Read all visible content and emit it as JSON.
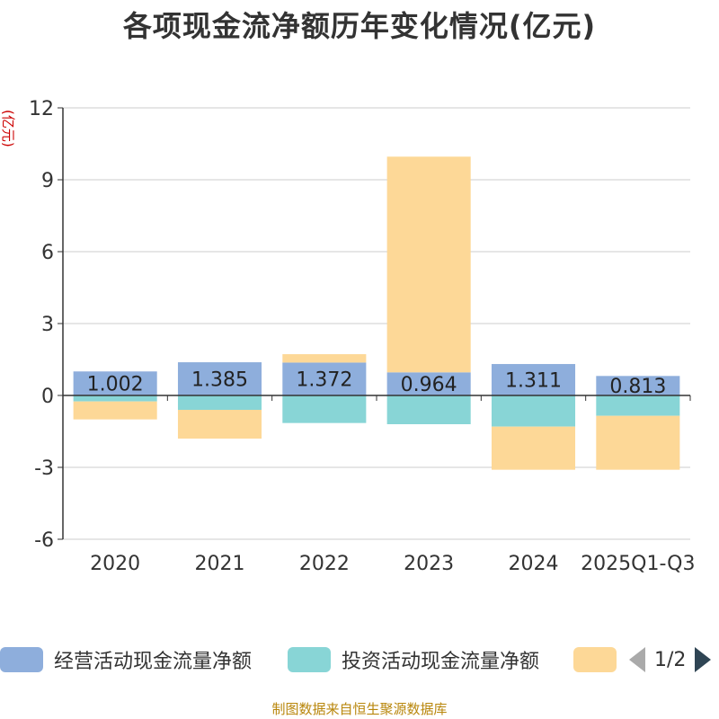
{
  "chart_data": {
    "type": "bar",
    "stacked": true,
    "title": "各项现金流净额历年变化情况(亿元)",
    "ylabel": "(亿元)",
    "xlabel": "",
    "ylim": [
      -6,
      12
    ],
    "yticks": [
      -6,
      -3,
      0,
      3,
      6,
      9,
      12
    ],
    "categories": [
      "2020",
      "2021",
      "2022",
      "2023",
      "2024",
      "2025Q1-Q3"
    ],
    "series": [
      {
        "name": "经营活动现金流量净额",
        "color": "#8eaedc",
        "values": [
          1.002,
          1.385,
          1.372,
          0.964,
          1.311,
          0.813
        ],
        "labels": [
          "1.002",
          "1.385",
          "1.372",
          "0.964",
          "1.311",
          "0.813"
        ]
      },
      {
        "name": "投资活动现金流量净额",
        "color": "#88d5d6",
        "values": [
          -0.25,
          -0.6,
          -1.15,
          -1.2,
          -1.3,
          -0.85
        ]
      },
      {
        "name": "",
        "color": "#fdd897",
        "values": [
          -0.75,
          -1.2,
          0.35,
          9.0,
          -1.8,
          -2.25
        ]
      }
    ],
    "grid": true,
    "legend_position": "bottom"
  },
  "legend": {
    "page": "1/2",
    "prev_icon": "chevron-left-icon",
    "next_icon": "chevron-right-icon"
  },
  "footer": {
    "source": "制图数据来自恒生聚源数据库"
  }
}
